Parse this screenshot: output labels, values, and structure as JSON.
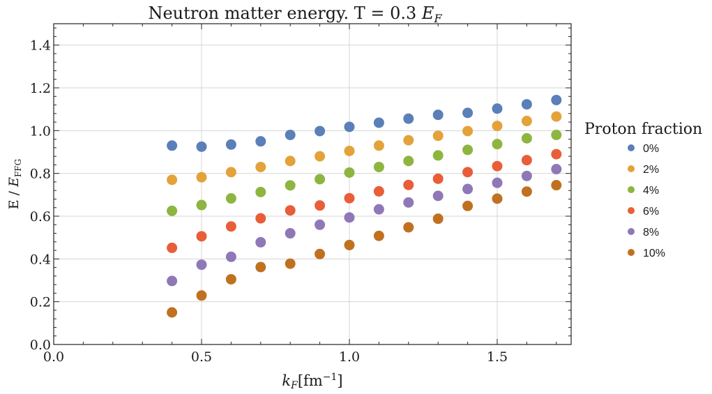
{
  "chart_data": {
    "type": "scatter",
    "title_prefix": "Neutron matter energy. T = 0.3 ",
    "title_var": "E",
    "title_var_sub": "F",
    "xlabel_var": "k",
    "xlabel_var_sub": "F",
    "xlabel_unit_prefix": "[fm",
    "xlabel_unit_sup": "−1",
    "xlabel_unit_suffix": "]",
    "ylabel_prefix": "E / ",
    "ylabel_var": "E",
    "ylabel_var_sub": "FFG",
    "xlim": [
      0,
      1.75
    ],
    "ylim": [
      0,
      1.5
    ],
    "xticks": [
      0.0,
      0.5,
      1.0,
      1.5
    ],
    "xtick_labels": [
      "0.0",
      "0.5",
      "1.0",
      "1.5"
    ],
    "yticks": [
      0.0,
      0.2,
      0.4,
      0.6,
      0.8,
      1.0,
      1.2,
      1.4
    ],
    "ytick_labels": [
      "0.0",
      "0.2",
      "0.4",
      "0.6",
      "0.8",
      "1.0",
      "1.2",
      "1.4"
    ],
    "grid": true,
    "legend_title": "Proton fraction",
    "legend_position": "right",
    "x": [
      0.4,
      0.5,
      0.6,
      0.7,
      0.8,
      0.9,
      1.0,
      1.1,
      1.2,
      1.3,
      1.4,
      1.5,
      1.6,
      1.7
    ],
    "series": [
      {
        "name": "0%",
        "color": "#5b7fb8",
        "values": [
          0.93,
          0.925,
          0.935,
          0.95,
          0.98,
          0.998,
          1.018,
          1.037,
          1.056,
          1.074,
          1.083,
          1.103,
          1.123,
          1.143
        ]
      },
      {
        "name": "2%",
        "color": "#e3a23a",
        "values": [
          0.77,
          0.782,
          0.806,
          0.83,
          0.858,
          0.88,
          0.905,
          0.93,
          0.955,
          0.976,
          0.998,
          1.022,
          1.045,
          1.066
        ]
      },
      {
        "name": "4%",
        "color": "#8db540",
        "values": [
          0.625,
          0.652,
          0.683,
          0.713,
          0.744,
          0.773,
          0.804,
          0.83,
          0.858,
          0.884,
          0.91,
          0.937,
          0.964,
          0.98
        ]
      },
      {
        "name": "6%",
        "color": "#e95e38",
        "values": [
          0.452,
          0.506,
          0.552,
          0.59,
          0.627,
          0.65,
          0.684,
          0.716,
          0.746,
          0.775,
          0.806,
          0.834,
          0.862,
          0.89
        ]
      },
      {
        "name": "8%",
        "color": "#8e78b7",
        "values": [
          0.297,
          0.373,
          0.41,
          0.478,
          0.52,
          0.56,
          0.594,
          0.632,
          0.664,
          0.695,
          0.727,
          0.756,
          0.788,
          0.82
        ]
      },
      {
        "name": "10%",
        "color": "#c0711f",
        "values": [
          0.15,
          0.229,
          0.305,
          0.362,
          0.378,
          0.423,
          0.465,
          0.508,
          0.548,
          0.588,
          0.648,
          0.682,
          0.715,
          0.745
        ]
      }
    ]
  }
}
